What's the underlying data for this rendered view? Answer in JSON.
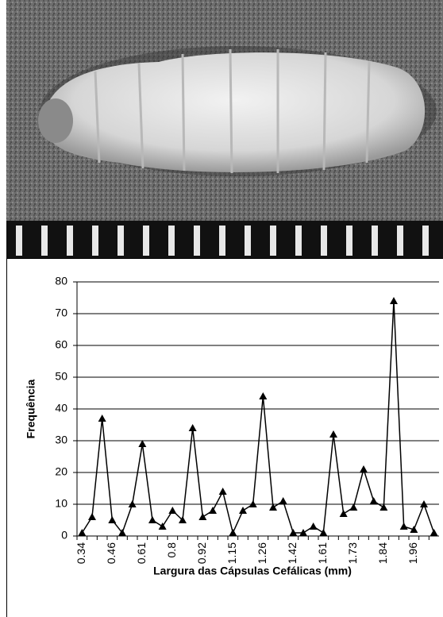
{
  "chart_data": {
    "type": "line",
    "y_label": "Frequência",
    "x_label": "Largura das Cápsulas Cefálicas (mm)",
    "categories": [
      "0.34",
      null,
      null,
      "0.46",
      null,
      null,
      "0.61",
      null,
      null,
      "0.8",
      null,
      null,
      "0.92",
      null,
      null,
      "1.15",
      null,
      null,
      "1.26",
      null,
      null,
      "1.42",
      null,
      null,
      "1.61",
      null,
      null,
      "1.73",
      null,
      null,
      "1.84",
      null,
      null,
      "1.96",
      null,
      null
    ],
    "values": [
      1,
      6,
      37,
      5,
      1,
      10,
      29,
      5,
      3,
      8,
      5,
      34,
      6,
      8,
      14,
      1,
      8,
      10,
      44,
      9,
      11,
      1,
      1,
      3,
      1,
      32,
      7,
      9,
      21,
      11,
      9,
      74,
      3,
      2,
      10,
      1
    ],
    "color": "#000000",
    "marker": "triangle",
    "ylim": [
      0,
      80
    ],
    "yticks": [
      0,
      10,
      20,
      30,
      40,
      50,
      60,
      70,
      80
    ],
    "grid": true
  }
}
